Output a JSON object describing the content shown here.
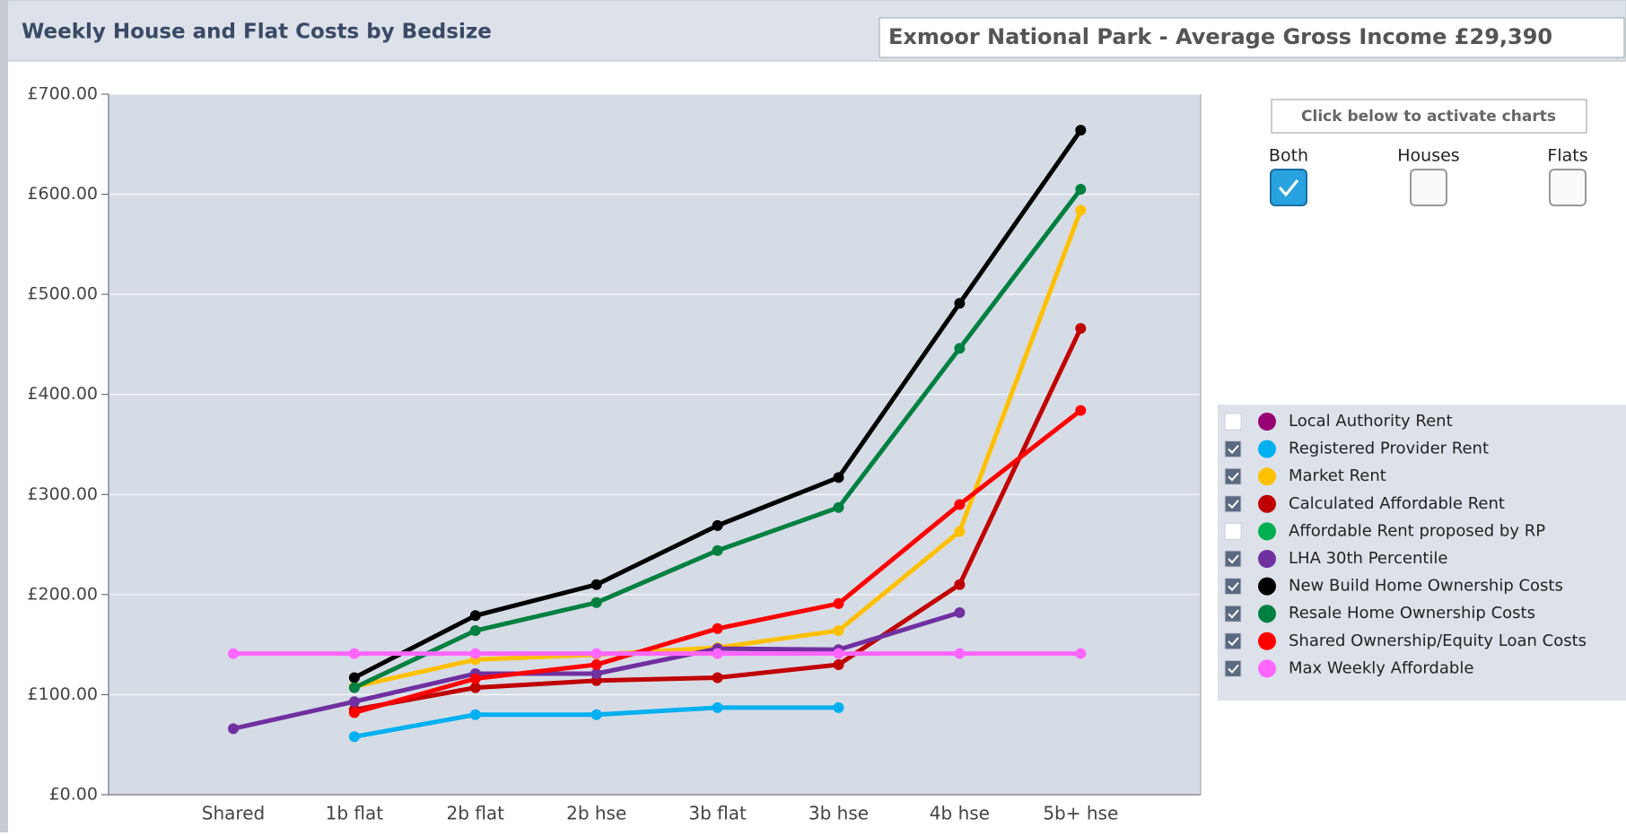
{
  "chart_data": {
    "type": "line",
    "title": "Weekly House and Flat Costs by Bedsize",
    "subtitle": "Exmoor National Park - Average Gross Income £29,390",
    "activate_label": "Click below to activate charts",
    "toggles": [
      {
        "label": "Both",
        "checked": true
      },
      {
        "label": "Houses",
        "checked": false
      },
      {
        "label": "Flats",
        "checked": false
      }
    ],
    "categories": [
      "Shared",
      "1b flat",
      "2b flat",
      "2b hse",
      "3b flat",
      "3b hse",
      "4b hse",
      "5b+ hse"
    ],
    "ylim": [
      0,
      700
    ],
    "yticks": [
      {
        "value": 0,
        "label": "£0.00"
      },
      {
        "value": 100,
        "label": "£100.00"
      },
      {
        "value": 200,
        "label": "£200.00"
      },
      {
        "value": 300,
        "label": "£300.00"
      },
      {
        "value": 400,
        "label": "£400.00"
      },
      {
        "value": 500,
        "label": "£500.00"
      },
      {
        "value": 600,
        "label": "£600.00"
      },
      {
        "value": 700,
        "label": "£700.00"
      }
    ],
    "grid": true,
    "series": [
      {
        "name": "Local Authority Rent",
        "color": "#990073",
        "checked": false,
        "values": [
          null,
          null,
          null,
          null,
          null,
          null,
          null,
          null
        ]
      },
      {
        "name": "Registered Provider Rent",
        "color": "#00b0f0",
        "checked": true,
        "values": [
          null,
          58,
          80,
          80,
          87,
          87,
          null,
          null
        ]
      },
      {
        "name": "Market Rent",
        "color": "#ffc000",
        "checked": true,
        "values": [
          null,
          108,
          135,
          140,
          147,
          164,
          263,
          584
        ]
      },
      {
        "name": "Calculated Affordable Rent",
        "color": "#c00000",
        "checked": true,
        "values": [
          null,
          85,
          107,
          114,
          117,
          130,
          210,
          466
        ]
      },
      {
        "name": "Affordable Rent proposed by RP",
        "color": "#00b050",
        "checked": false,
        "values": [
          null,
          null,
          null,
          null,
          null,
          null,
          null,
          null
        ]
      },
      {
        "name": "LHA 30th Percentile",
        "color": "#7030a0",
        "checked": true,
        "values": [
          66,
          93,
          121,
          121,
          146,
          145,
          182,
          null
        ]
      },
      {
        "name": "New Build Home Ownership Costs",
        "color": "#000000",
        "checked": true,
        "values": [
          null,
          117,
          179,
          210,
          269,
          317,
          491,
          664
        ]
      },
      {
        "name": "Resale Home Ownership Costs",
        "color": "#008040",
        "checked": true,
        "values": [
          null,
          107,
          164,
          192,
          244,
          287,
          446,
          605
        ]
      },
      {
        "name": "Shared Ownership/Equity Loan Costs",
        "color": "#ff0000",
        "checked": true,
        "values": [
          null,
          82,
          116,
          130,
          166,
          191,
          290,
          384
        ]
      },
      {
        "name": "Max Weekly Affordable",
        "color": "#ff66ff",
        "checked": true,
        "values": [
          141,
          141,
          141,
          141,
          141,
          141,
          141,
          141
        ]
      }
    ]
  }
}
